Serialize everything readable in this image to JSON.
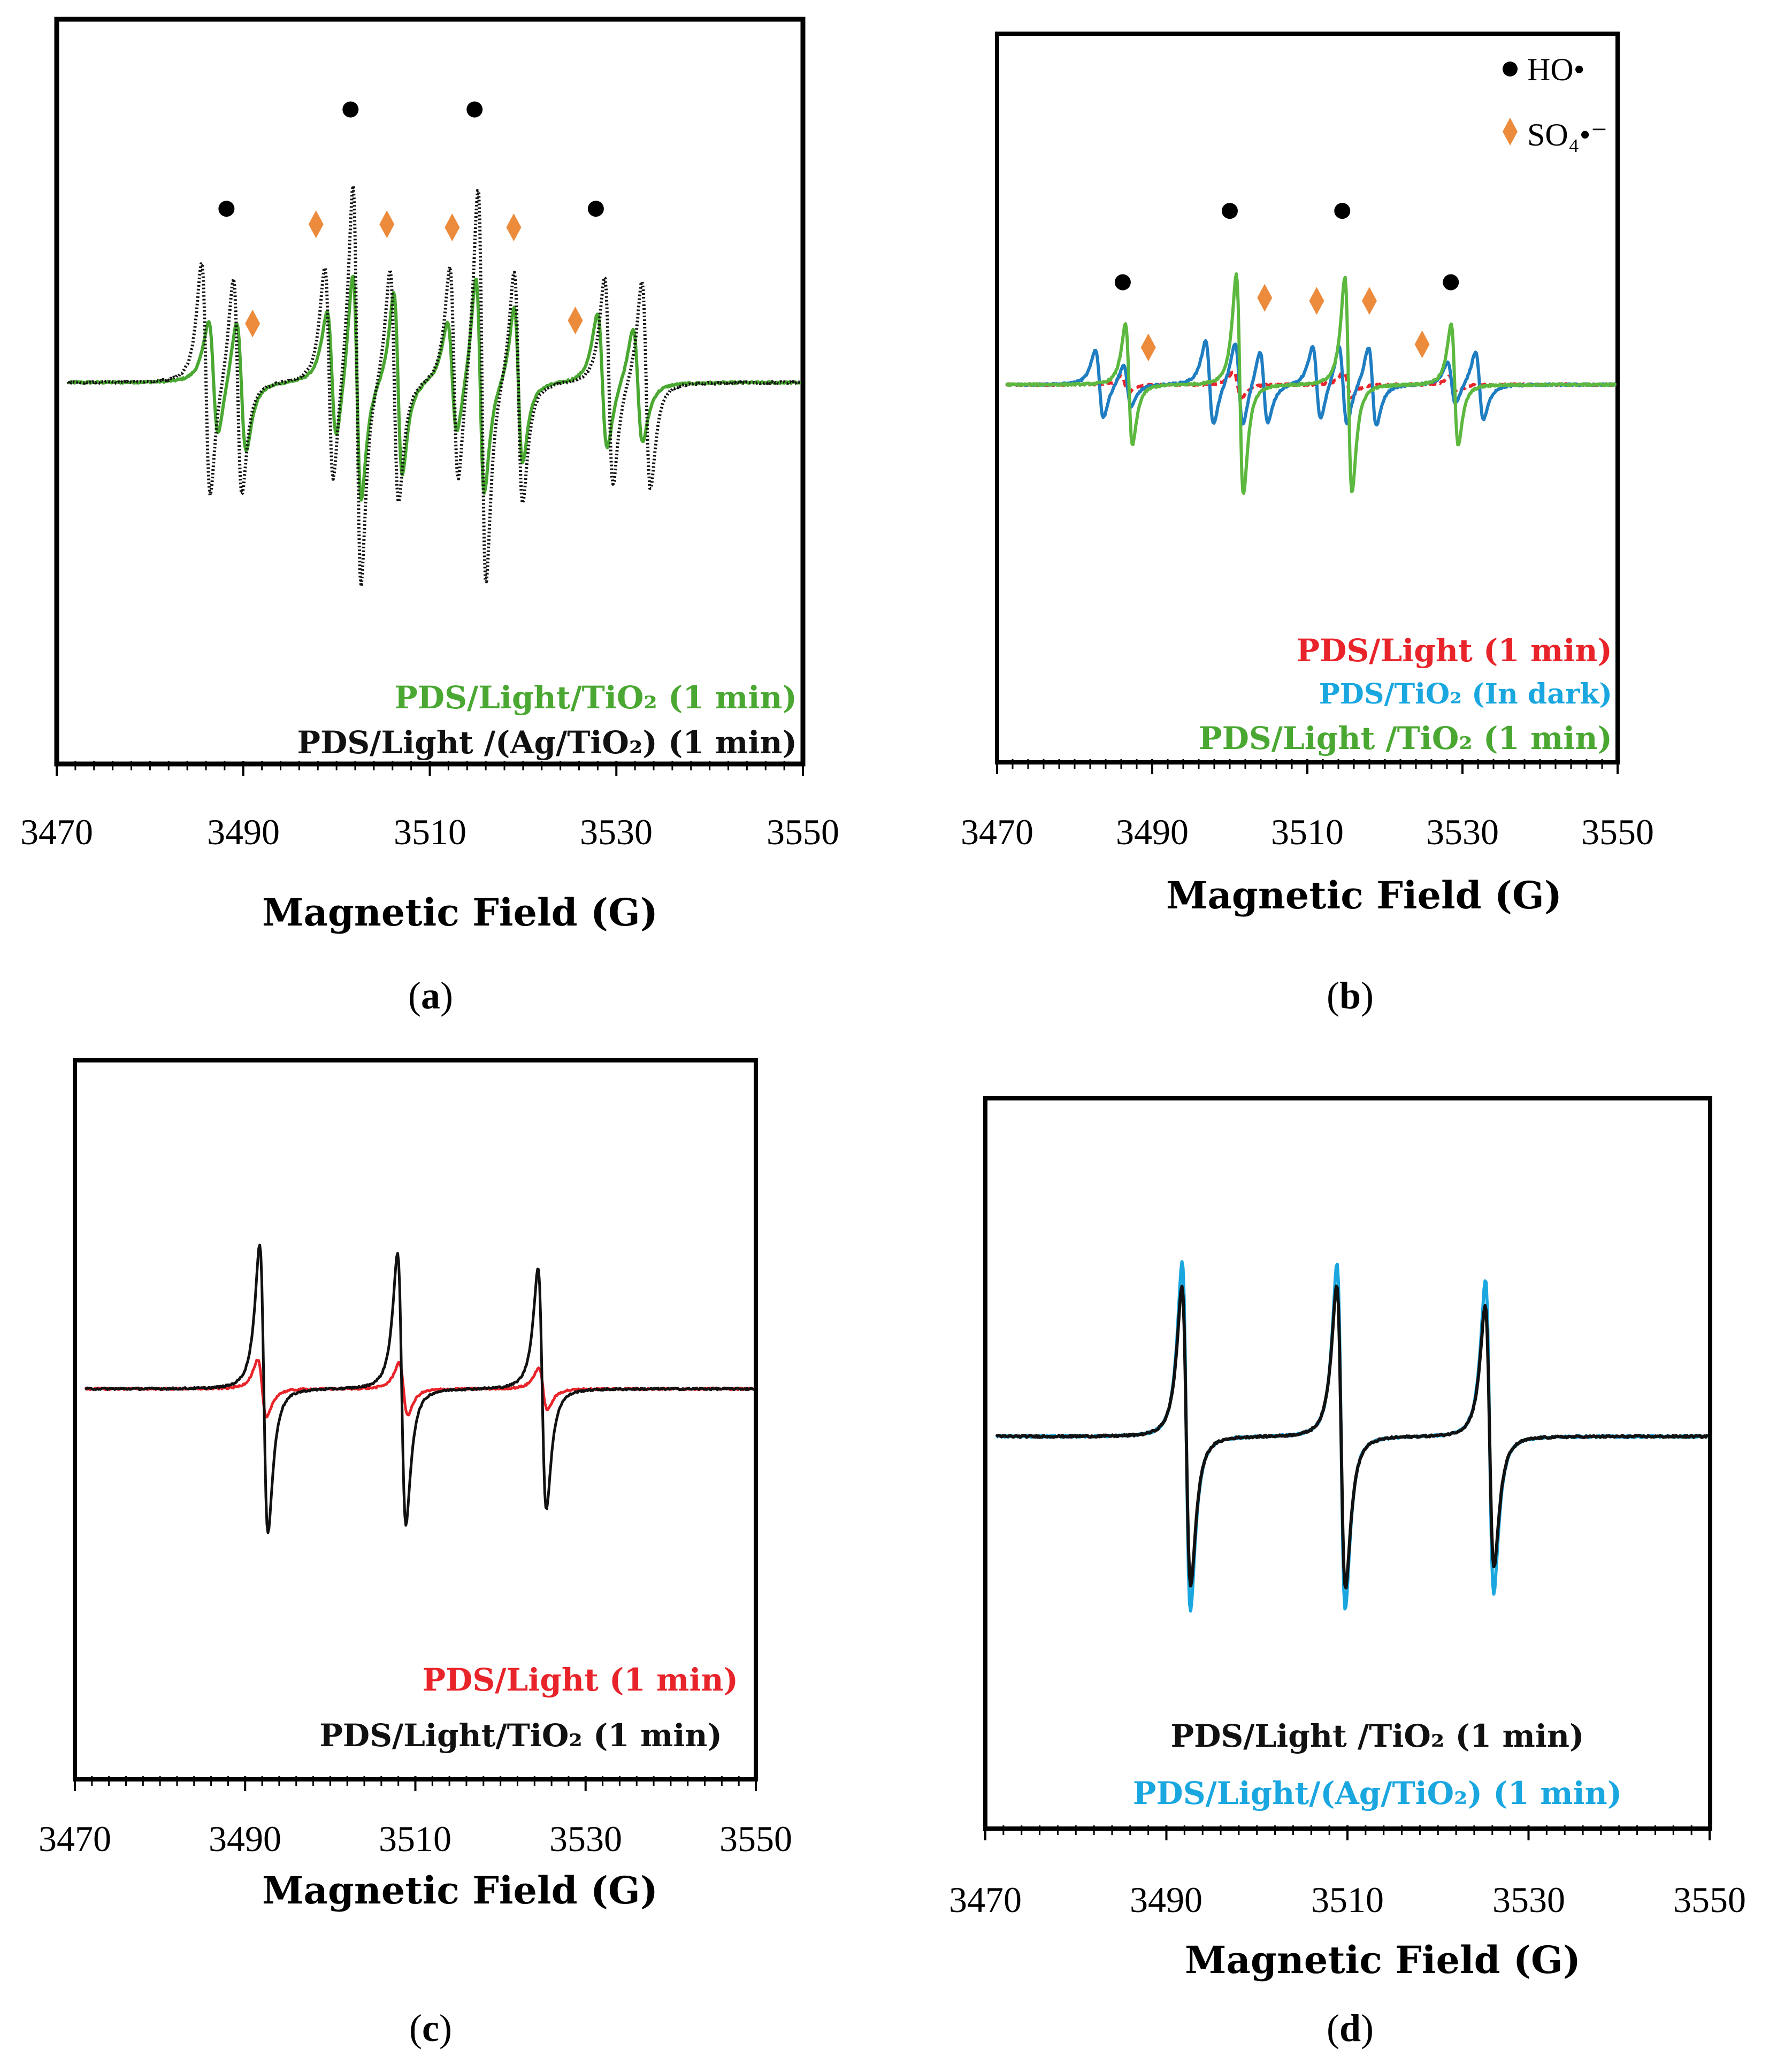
{
  "chart_data": [
    {
      "id": "a",
      "type": "line",
      "caption_letter": "a",
      "xlabel": "Magnetic Field (G)",
      "xlim": [
        3470,
        3550
      ],
      "xticks": [
        3470,
        3490,
        3510,
        3530,
        3550
      ],
      "series": [
        {
          "name": "PDS/Light/TiO₂ (1 min)",
          "color": "#4aa832",
          "style": "solid",
          "lines": [
            {
              "center": 3486.8,
              "amp": 0.22,
              "width": 0.9
            },
            {
              "center": 3489.8,
              "amp": 0.25,
              "width": 0.9
            },
            {
              "center": 3499.5,
              "amp": 0.25,
              "width": 0.9
            },
            {
              "center": 3502.2,
              "amp": 0.44,
              "width": 0.8
            },
            {
              "center": 3506.6,
              "amp": 0.35,
              "width": 0.8
            },
            {
              "center": 3512.4,
              "amp": 0.22,
              "width": 0.9
            },
            {
              "center": 3515.4,
              "amp": 0.42,
              "width": 0.8
            },
            {
              "center": 3519.5,
              "amp": 0.3,
              "width": 0.8
            },
            {
              "center": 3528.5,
              "amp": 0.26,
              "width": 0.9
            },
            {
              "center": 3532.3,
              "amp": 0.22,
              "width": 0.9
            }
          ]
        },
        {
          "name": "PDS/Light /(Ag/TiO₂) (1 min)",
          "color": "#111111",
          "style": "dotted",
          "lines": [
            {
              "center": 3486.0,
              "amp": 0.45,
              "width": 0.8
            },
            {
              "center": 3489.4,
              "amp": 0.42,
              "width": 0.8
            },
            {
              "center": 3499.2,
              "amp": 0.42,
              "width": 0.8
            },
            {
              "center": 3502.2,
              "amp": 0.78,
              "width": 0.75
            },
            {
              "center": 3506.2,
              "amp": 0.45,
              "width": 0.8
            },
            {
              "center": 3512.6,
              "amp": 0.42,
              "width": 0.8
            },
            {
              "center": 3515.6,
              "amp": 0.77,
              "width": 0.75
            },
            {
              "center": 3519.5,
              "amp": 0.45,
              "width": 0.8
            },
            {
              "center": 3529.2,
              "amp": 0.4,
              "width": 0.8
            },
            {
              "center": 3533.2,
              "amp": 0.4,
              "width": 0.8
            }
          ]
        }
      ],
      "markers": [
        {
          "kind": "dot",
          "x": 3488.2,
          "y": 0.56
        },
        {
          "kind": "dot",
          "x": 3501.5,
          "y": 0.88
        },
        {
          "kind": "dot",
          "x": 3514.8,
          "y": 0.88
        },
        {
          "kind": "dot",
          "x": 3527.8,
          "y": 0.56
        },
        {
          "kind": "diamond",
          "x": 3491.0,
          "y": 0.19
        },
        {
          "kind": "diamond",
          "x": 3497.8,
          "y": 0.51
        },
        {
          "kind": "diamond",
          "x": 3505.4,
          "y": 0.51
        },
        {
          "kind": "diamond",
          "x": 3512.4,
          "y": 0.5
        },
        {
          "kind": "diamond",
          "x": 3519.0,
          "y": 0.5
        },
        {
          "kind": "diamond",
          "x": 3525.6,
          "y": 0.2
        }
      ],
      "legend": [
        "PDS/Light/TiO₂ (1 min)",
        "PDS/Light /(Ag/TiO₂) (1 min)"
      ]
    },
    {
      "id": "b",
      "type": "line",
      "caption_letter": "b",
      "xlabel": "Magnetic Field (G)",
      "xlim": [
        3470,
        3550
      ],
      "xticks": [
        3470,
        3490,
        3510,
        3530,
        3550
      ],
      "series": [
        {
          "name": "PDS/Light (1 min)",
          "color": "#e8242a",
          "style": "dashed",
          "lines": [
            {
              "center": 3486.5,
              "amp": 0.03,
              "width": 0.9
            },
            {
              "center": 3501.0,
              "amp": 0.05,
              "width": 0.9
            },
            {
              "center": 3515.2,
              "amp": 0.05,
              "width": 0.9
            },
            {
              "center": 3528.8,
              "amp": 0.03,
              "width": 0.9
            }
          ]
        },
        {
          "name": "PDS/TiO₂ (In dark)",
          "color": "#1f7ec2",
          "style": "solid",
          "lines": [
            {
              "center": 3483.2,
              "amp": 0.13,
              "width": 0.9
            },
            {
              "center": 3486.8,
              "amp": 0.08,
              "width": 0.9
            },
            {
              "center": 3497.4,
              "amp": 0.16,
              "width": 0.9
            },
            {
              "center": 3501.2,
              "amp": 0.16,
              "width": 0.9
            },
            {
              "center": 3504.4,
              "amp": 0.14,
              "width": 0.9
            },
            {
              "center": 3511.2,
              "amp": 0.14,
              "width": 0.9
            },
            {
              "center": 3514.6,
              "amp": 0.15,
              "width": 0.9
            },
            {
              "center": 3518.4,
              "amp": 0.15,
              "width": 0.9
            },
            {
              "center": 3528.6,
              "amp": 0.08,
              "width": 0.9
            },
            {
              "center": 3532.2,
              "amp": 0.13,
              "width": 0.9
            }
          ]
        },
        {
          "name": "PDS/Light /TiO₂ (1 min)",
          "color": "#5cb83f",
          "style": "solid",
          "lines": [
            {
              "center": 3487.0,
              "amp": 0.23,
              "width": 0.8
            },
            {
              "center": 3501.3,
              "amp": 0.42,
              "width": 0.8
            },
            {
              "center": 3515.3,
              "amp": 0.41,
              "width": 0.8
            },
            {
              "center": 3529.0,
              "amp": 0.23,
              "width": 0.8
            }
          ]
        }
      ],
      "markers": [
        {
          "kind": "dot",
          "x": 3486.2,
          "y": 0.33
        },
        {
          "kind": "dot",
          "x": 3500.0,
          "y": 0.56
        },
        {
          "kind": "dot",
          "x": 3514.5,
          "y": 0.56
        },
        {
          "kind": "dot",
          "x": 3528.5,
          "y": 0.33
        },
        {
          "kind": "diamond",
          "x": 3489.5,
          "y": 0.12
        },
        {
          "kind": "diamond",
          "x": 3504.5,
          "y": 0.28
        },
        {
          "kind": "diamond",
          "x": 3511.2,
          "y": 0.27
        },
        {
          "kind": "diamond",
          "x": 3518.0,
          "y": 0.27
        },
        {
          "kind": "diamond",
          "x": 3524.8,
          "y": 0.13
        }
      ],
      "marker_legend": [
        {
          "kind": "dot",
          "label": "HO•"
        },
        {
          "kind": "diamond",
          "label": "SO₄•⁻"
        }
      ],
      "legend": [
        "PDS/Light (1 min)",
        "PDS/TiO₂ (In dark)",
        "PDS/Light /TiO₂ (1 min)"
      ]
    },
    {
      "id": "c",
      "type": "line",
      "caption_letter": "c",
      "xlabel": "Magnetic Field (G)",
      "xlim": [
        3470,
        3550
      ],
      "xticks": [
        3470,
        3490,
        3510,
        3530,
        3550
      ],
      "series": [
        {
          "name": "PDS/Light (1 min)",
          "color": "#e8242a",
          "style": "solid",
          "lines": [
            {
              "center": 3492.0,
              "amp": 0.11,
              "width": 0.9
            },
            {
              "center": 3508.6,
              "amp": 0.1,
              "width": 0.9
            },
            {
              "center": 3525.0,
              "amp": 0.08,
              "width": 0.9
            }
          ]
        },
        {
          "name": "PDS/Light/TiO₂ (1 min)",
          "color": "#111111",
          "style": "solid",
          "lines": [
            {
              "center": 3492.2,
              "amp": 0.55,
              "width": 0.85
            },
            {
              "center": 3508.4,
              "amp": 0.52,
              "width": 0.85
            },
            {
              "center": 3524.9,
              "amp": 0.46,
              "width": 0.85
            }
          ]
        }
      ],
      "legend": [
        "PDS/Light (1 min)",
        "PDS/Light/TiO₂ (1 min)"
      ]
    },
    {
      "id": "d",
      "type": "line",
      "caption_letter": "d",
      "xlabel": "Magnetic Field (G)",
      "xlim": [
        3470,
        3550
      ],
      "xticks": [
        3470,
        3490,
        3510,
        3530,
        3550
      ],
      "series": [
        {
          "name": "PDS/Light/(Ag/TiO₂) (1 min)",
          "color": "#1aa7e0",
          "style": "solid",
          "lines": [
            {
              "center": 3492.2,
              "amp": 0.67,
              "width": 0.8
            },
            {
              "center": 3509.3,
              "amp": 0.66,
              "width": 0.8
            },
            {
              "center": 3525.7,
              "amp": 0.6,
              "width": 0.8
            }
          ]
        },
        {
          "name": "PDS/Light /TiO₂ (1 min)",
          "color": "#111111",
          "style": "solid",
          "lines": [
            {
              "center": 3492.2,
              "amp": 0.57,
              "width": 0.85
            },
            {
              "center": 3509.3,
              "amp": 0.58,
              "width": 0.85
            },
            {
              "center": 3525.7,
              "amp": 0.5,
              "width": 0.85
            }
          ]
        }
      ],
      "legend": [
        "PDS/Light /TiO₂ (1 min)",
        "PDS/Light/(Ag/TiO₂) (1 min)"
      ]
    }
  ]
}
